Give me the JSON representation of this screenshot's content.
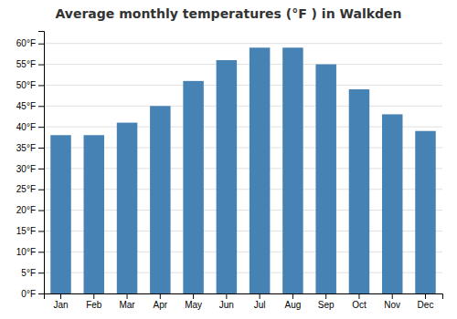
{
  "chart_data": {
    "type": "bar",
    "title": "Average monthly temperatures (°F ) in Walkden",
    "categories": [
      "Jan",
      "Feb",
      "Mar",
      "Apr",
      "May",
      "Jun",
      "Jul",
      "Aug",
      "Sep",
      "Oct",
      "Nov",
      "Dec"
    ],
    "values": [
      38,
      38,
      41,
      45,
      51,
      56,
      59,
      59,
      55,
      49,
      43,
      39
    ],
    "ylim": [
      0,
      63
    ],
    "yticks": [
      {
        "value": 0,
        "label": "0°F"
      },
      {
        "value": 5,
        "label": "5°F"
      },
      {
        "value": 10,
        "label": "10°F"
      },
      {
        "value": 15,
        "label": "15°F"
      },
      {
        "value": 20,
        "label": "20°F"
      },
      {
        "value": 25,
        "label": "25°F"
      },
      {
        "value": 30,
        "label": "30°F"
      },
      {
        "value": 35,
        "label": "35°F"
      },
      {
        "value": 40,
        "label": "40°F"
      },
      {
        "value": 45,
        "label": "45°F"
      },
      {
        "value": 50,
        "label": "50°F"
      },
      {
        "value": 55,
        "label": "55°F"
      },
      {
        "value": 60,
        "label": "60°F"
      }
    ],
    "grid": true
  }
}
